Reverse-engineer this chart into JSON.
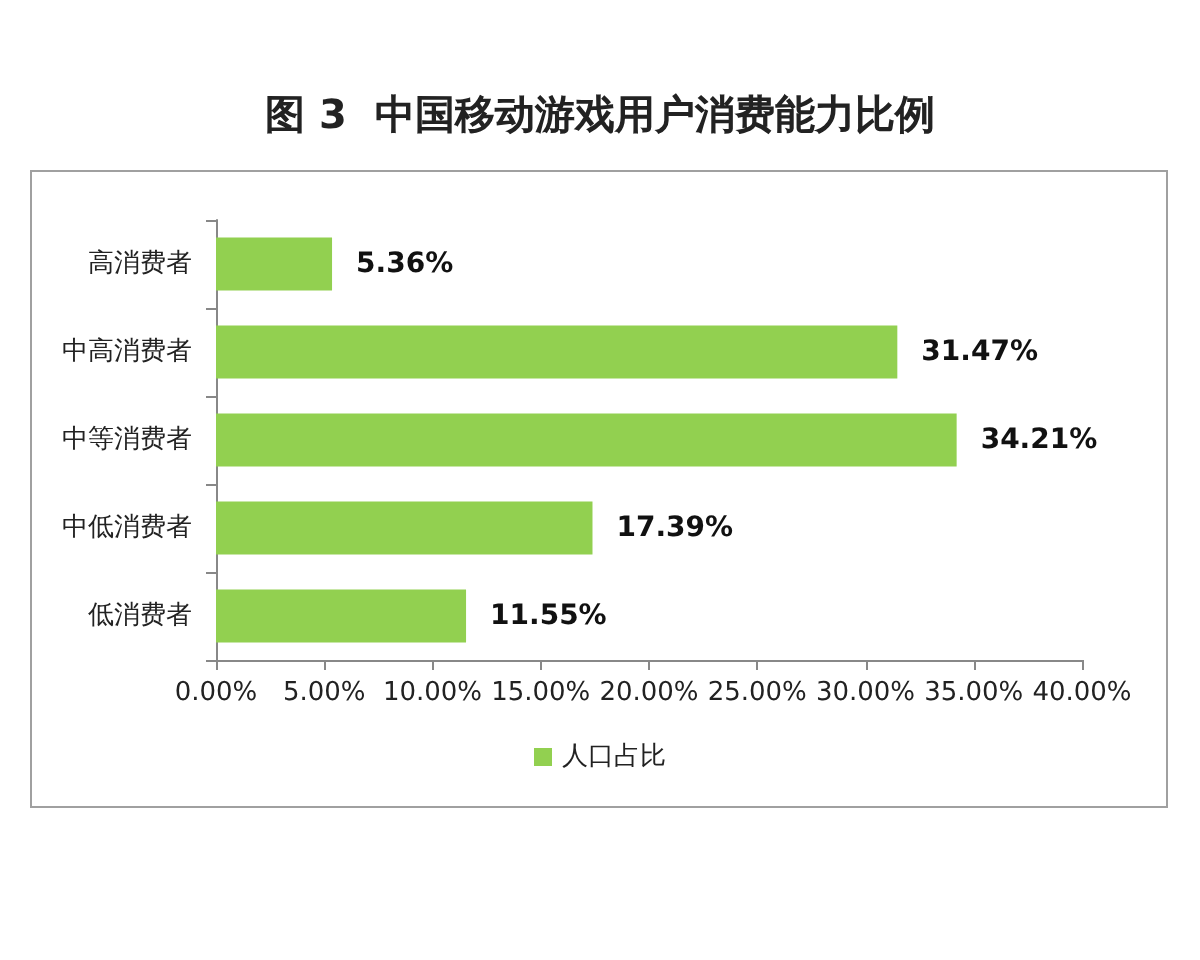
{
  "chart_data": {
    "type": "bar",
    "orientation": "horizontal",
    "title": "图 3  中国移动游戏用户消费能力比例",
    "categories": [
      "高消费者",
      "中高消费者",
      "中等消费者",
      "中低消费者",
      "低消费者"
    ],
    "series": [
      {
        "name": "人口占比",
        "color": "#92d050",
        "values": [
          5.36,
          31.47,
          34.21,
          17.39,
          11.55
        ],
        "value_labels": [
          "5.36%",
          "31.47%",
          "34.21%",
          "17.39%",
          "11.55%"
        ]
      }
    ],
    "xlim": [
      0,
      40
    ],
    "xticks": [
      {
        "value": 0,
        "label": "0.00%"
      },
      {
        "value": 5,
        "label": "5.00%"
      },
      {
        "value": 10,
        "label": "10.00%"
      },
      {
        "value": 15,
        "label": "15.00%"
      },
      {
        "value": 20,
        "label": "20.00%"
      },
      {
        "value": 25,
        "label": "25.00%"
      },
      {
        "value": 30,
        "label": "30.00%"
      },
      {
        "value": 35,
        "label": "35.00%"
      },
      {
        "value": 40,
        "label": "40.00%"
      }
    ],
    "legend": "bottom"
  }
}
